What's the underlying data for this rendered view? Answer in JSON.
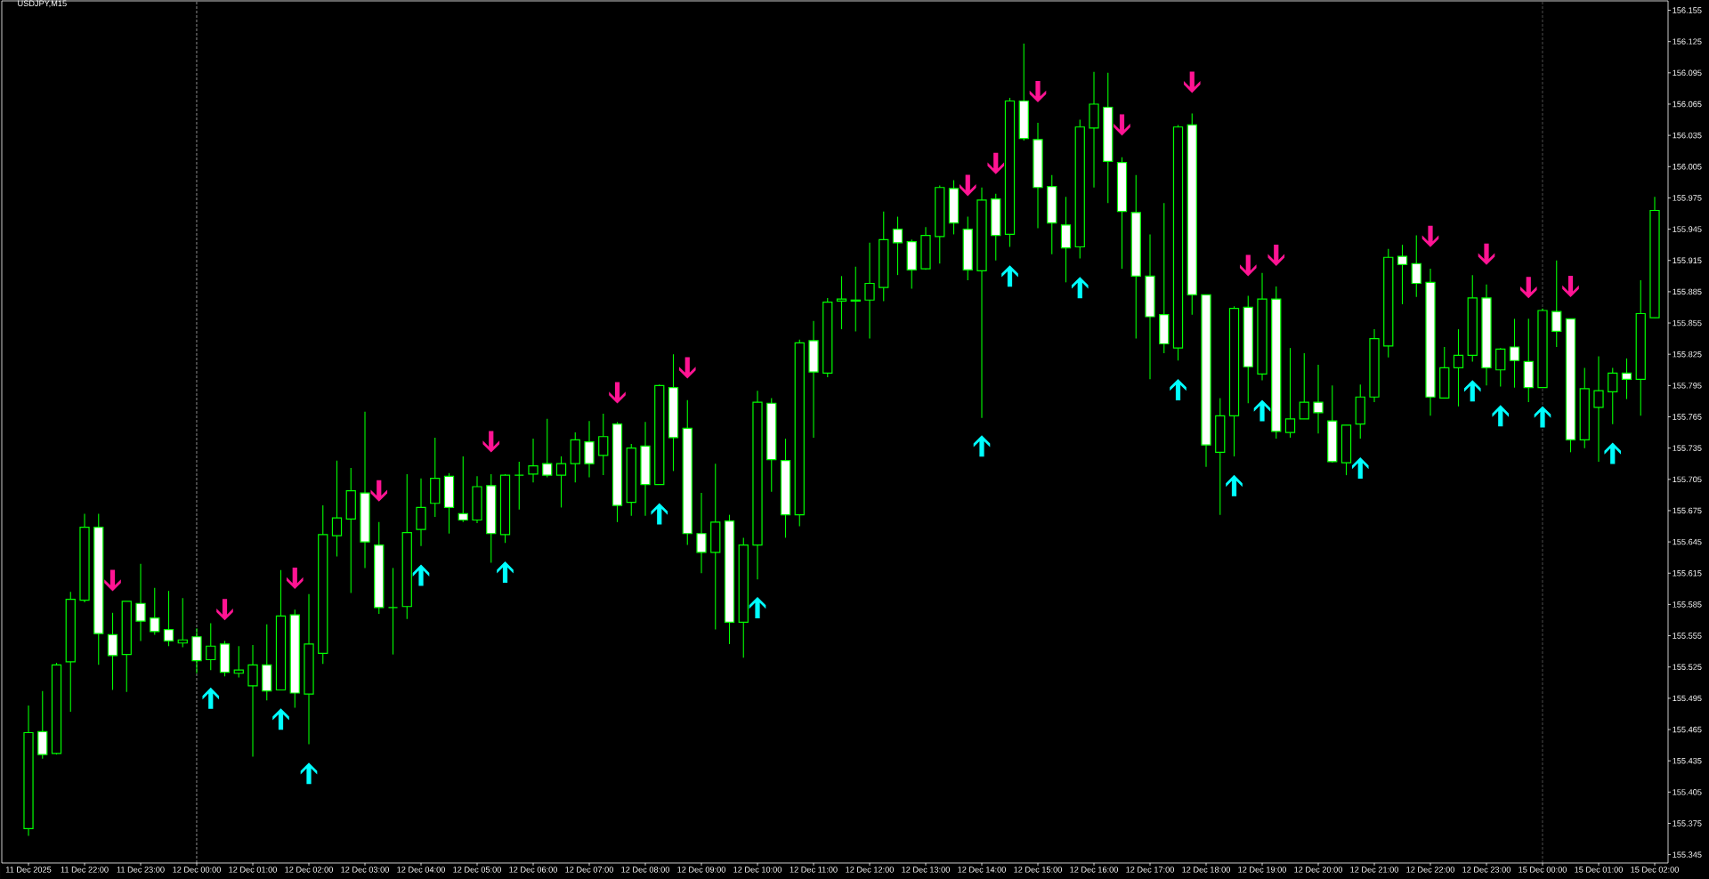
{
  "chart_data": {
    "type": "candlestick",
    "title": "USDJPY,M15",
    "categories": [
      "11 Dec 2025",
      null,
      null,
      null,
      "11 Dec 22:00",
      null,
      null,
      null,
      "11 Dec 23:00",
      null,
      null,
      null,
      "12 Dec 00:00",
      null,
      null,
      null,
      "12 Dec 01:00",
      null,
      null,
      null,
      "12 Dec 02:00",
      null,
      null,
      null,
      "12 Dec 03:00",
      null,
      null,
      null,
      "12 Dec 04:00",
      null,
      null,
      null,
      "12 Dec 05:00",
      null,
      null,
      null,
      "12 Dec 06:00",
      null,
      null,
      null,
      "12 Dec 07:00",
      null,
      null,
      null,
      "12 Dec 08:00",
      null,
      null,
      null,
      "12 Dec 09:00",
      null,
      null,
      null,
      "12 Dec 10:00",
      null,
      null,
      null,
      "12 Dec 11:00",
      null,
      null,
      null,
      "12 Dec 12:00",
      null,
      null,
      null,
      "12 Dec 13:00",
      null,
      null,
      null,
      "12 Dec 14:00",
      null,
      null,
      null,
      "12 Dec 15:00",
      null,
      null,
      null,
      "12 Dec 16:00",
      null,
      null,
      null,
      "12 Dec 17:00",
      null,
      null,
      null,
      "12 Dec 18:00",
      null,
      null,
      null,
      "12 Dec 19:00",
      null,
      null,
      null,
      "12 Dec 20:00",
      null,
      null,
      null,
      "12 Dec 21:00",
      null,
      null,
      null,
      "12 Dec 22:00",
      null,
      null,
      null,
      "12 Dec 23:00",
      null,
      null,
      null,
      "15 Dec 00:00",
      null,
      null,
      null,
      "15 Dec 01:00",
      null,
      null,
      null,
      "15 Dec 02:00"
    ],
    "color": "#00ff00",
    "ohlc": [
      [
        155.37,
        155.488,
        155.363,
        155.462
      ],
      [
        155.463,
        155.502,
        155.437,
        155.441
      ],
      [
        155.442,
        155.529,
        155.441,
        155.527
      ],
      [
        155.53,
        155.597,
        155.482,
        155.59
      ],
      [
        155.589,
        155.672,
        155.587,
        155.659
      ],
      [
        155.659,
        155.672,
        155.527,
        155.557
      ],
      [
        155.556,
        155.577,
        155.503,
        155.536
      ],
      [
        155.537,
        155.588,
        155.501,
        155.588
      ],
      [
        155.586,
        155.624,
        155.55,
        155.569
      ],
      [
        155.572,
        155.601,
        155.556,
        155.559
      ],
      [
        155.561,
        155.598,
        155.545,
        155.55
      ],
      [
        155.548,
        155.591,
        155.544,
        155.551
      ],
      [
        155.554,
        155.562,
        155.519,
        155.531
      ],
      [
        155.532,
        155.567,
        155.522,
        155.545
      ],
      [
        155.547,
        155.55,
        155.516,
        155.52
      ],
      [
        155.519,
        155.545,
        155.515,
        155.522
      ],
      [
        155.507,
        155.546,
        155.439,
        155.527
      ],
      [
        155.527,
        155.566,
        155.493,
        155.502
      ],
      [
        155.503,
        155.618,
        155.503,
        155.574
      ],
      [
        155.575,
        155.58,
        155.486,
        155.5
      ],
      [
        155.499,
        155.595,
        155.451,
        155.547
      ],
      [
        155.538,
        155.68,
        155.528,
        155.652
      ],
      [
        155.651,
        155.723,
        155.631,
        155.668
      ],
      [
        155.667,
        155.716,
        155.596,
        155.694
      ],
      [
        155.692,
        155.77,
        155.62,
        155.645
      ],
      [
        155.642,
        155.664,
        155.576,
        155.582
      ],
      [
        155.582,
        155.62,
        155.537,
        155.582
      ],
      [
        155.583,
        155.71,
        155.571,
        155.654
      ],
      [
        155.657,
        155.706,
        155.641,
        155.678
      ],
      [
        155.682,
        155.745,
        155.669,
        155.706
      ],
      [
        155.708,
        155.711,
        155.653,
        155.678
      ],
      [
        155.672,
        155.727,
        155.664,
        155.666
      ],
      [
        155.666,
        155.708,
        155.663,
        155.698
      ],
      [
        155.699,
        155.71,
        155.625,
        155.653
      ],
      [
        155.652,
        155.71,
        155.644,
        155.709
      ],
      [
        155.709,
        155.722,
        155.676,
        155.709
      ],
      [
        155.71,
        155.744,
        155.702,
        155.718
      ],
      [
        155.72,
        155.763,
        155.707,
        155.709
      ],
      [
        155.709,
        155.727,
        155.678,
        155.72
      ],
      [
        155.72,
        155.75,
        155.702,
        155.743
      ],
      [
        155.741,
        155.761,
        155.707,
        155.72
      ],
      [
        155.728,
        155.768,
        155.709,
        155.746
      ],
      [
        155.758,
        155.76,
        155.664,
        155.68
      ],
      [
        155.683,
        155.739,
        155.67,
        155.735
      ],
      [
        155.737,
        155.76,
        155.67,
        155.7
      ],
      [
        155.7,
        155.796,
        155.7,
        155.795
      ],
      [
        155.793,
        155.825,
        155.713,
        155.745
      ],
      [
        155.754,
        155.781,
        155.642,
        155.653
      ],
      [
        155.653,
        155.692,
        155.615,
        155.635
      ],
      [
        155.635,
        155.72,
        155.561,
        155.664
      ],
      [
        155.665,
        155.671,
        155.547,
        155.568
      ],
      [
        155.568,
        155.649,
        155.534,
        155.642
      ],
      [
        155.642,
        155.79,
        155.609,
        155.779
      ],
      [
        155.778,
        155.783,
        155.693,
        155.724
      ],
      [
        155.723,
        155.744,
        155.649,
        155.671
      ],
      [
        155.671,
        155.839,
        155.66,
        155.836
      ],
      [
        155.838,
        155.857,
        155.745,
        155.808
      ],
      [
        155.807,
        155.879,
        155.803,
        155.875
      ],
      [
        155.876,
        155.9,
        155.849,
        155.878
      ],
      [
        155.877,
        155.909,
        155.847,
        155.876
      ],
      [
        155.877,
        155.932,
        155.84,
        155.893
      ],
      [
        155.889,
        155.962,
        155.876,
        155.935
      ],
      [
        155.945,
        155.957,
        155.901,
        155.932
      ],
      [
        155.933,
        155.935,
        155.888,
        155.906
      ],
      [
        155.907,
        155.947,
        155.906,
        155.939
      ],
      [
        155.938,
        155.987,
        155.912,
        155.985
      ],
      [
        155.984,
        155.992,
        155.94,
        155.951
      ],
      [
        155.945,
        155.957,
        155.896,
        155.906
      ],
      [
        155.905,
        155.985,
        155.764,
        155.973
      ],
      [
        155.974,
        155.979,
        155.915,
        155.939
      ],
      [
        155.94,
        156.071,
        155.928,
        156.068
      ],
      [
        156.068,
        156.123,
        156.03,
        156.032
      ],
      [
        156.031,
        156.047,
        155.946,
        155.985
      ],
      [
        155.986,
        155.997,
        155.921,
        155.951
      ],
      [
        155.949,
        155.976,
        155.894,
        155.927
      ],
      [
        155.928,
        156.05,
        155.917,
        156.043
      ],
      [
        156.042,
        156.096,
        155.985,
        156.065
      ],
      [
        156.062,
        156.095,
        155.97,
        156.01
      ],
      [
        156.009,
        156.014,
        155.907,
        155.962
      ],
      [
        155.961,
        155.997,
        155.84,
        155.9
      ],
      [
        155.9,
        155.94,
        155.801,
        155.861
      ],
      [
        155.863,
        155.97,
        155.826,
        155.835
      ],
      [
        155.831,
        156.045,
        155.819,
        156.043
      ],
      [
        156.045,
        156.056,
        155.863,
        155.882
      ],
      [
        155.882,
        155.882,
        155.717,
        155.738
      ],
      [
        155.731,
        155.783,
        155.671,
        155.766
      ],
      [
        155.766,
        155.871,
        155.727,
        155.869
      ],
      [
        155.87,
        155.881,
        155.778,
        155.813
      ],
      [
        155.806,
        155.903,
        155.8,
        155.878
      ],
      [
        155.878,
        155.89,
        155.744,
        155.751
      ],
      [
        155.75,
        155.831,
        155.745,
        155.763
      ],
      [
        155.763,
        155.826,
        155.763,
        155.779
      ],
      [
        155.779,
        155.815,
        155.749,
        155.769
      ],
      [
        155.761,
        155.795,
        155.721,
        155.722
      ],
      [
        155.721,
        155.757,
        155.709,
        155.757
      ],
      [
        155.758,
        155.796,
        155.744,
        155.784
      ],
      [
        155.784,
        155.849,
        155.779,
        155.84
      ],
      [
        155.833,
        155.926,
        155.822,
        155.918
      ],
      [
        155.919,
        155.93,
        155.873,
        155.911
      ],
      [
        155.912,
        155.939,
        155.88,
        155.893
      ],
      [
        155.894,
        155.907,
        155.766,
        155.784
      ],
      [
        155.783,
        155.832,
        155.783,
        155.812
      ],
      [
        155.812,
        155.849,
        155.775,
        155.824
      ],
      [
        155.824,
        155.901,
        155.818,
        155.879
      ],
      [
        155.879,
        155.892,
        155.795,
        155.812
      ],
      [
        155.81,
        155.831,
        155.794,
        155.83
      ],
      [
        155.832,
        155.859,
        155.793,
        155.819
      ],
      [
        155.818,
        155.859,
        155.779,
        155.793
      ],
      [
        155.793,
        155.869,
        155.793,
        155.867
      ],
      [
        155.866,
        155.915,
        155.832,
        155.847
      ],
      [
        155.859,
        155.859,
        155.731,
        155.743
      ],
      [
        155.743,
        155.812,
        155.735,
        155.792
      ],
      [
        155.774,
        155.823,
        155.722,
        155.79
      ],
      [
        155.789,
        155.812,
        155.758,
        155.807
      ],
      [
        155.807,
        155.821,
        155.782,
        155.801
      ],
      [
        155.801,
        155.896,
        155.766,
        155.864
      ],
      [
        155.86,
        155.976,
        155.86,
        155.963
      ]
    ],
    "series": [
      {
        "type": "scatter",
        "color": "#ff1493",
        "marker": "triangle",
        "values": [
          null,
          null,
          null,
          null,
          null,
          null,
          155.608,
          null,
          null,
          null,
          null,
          null,
          null,
          null,
          155.58,
          null,
          null,
          null,
          null,
          155.61,
          null,
          null,
          null,
          null,
          null,
          155.694,
          null,
          null,
          null,
          null,
          null,
          null,
          null,
          155.741,
          null,
          null,
          null,
          null,
          null,
          null,
          null,
          null,
          155.788,
          null,
          null,
          null,
          null,
          155.812,
          null,
          null,
          null,
          null,
          null,
          null,
          null,
          null,
          null,
          null,
          null,
          null,
          null,
          null,
          null,
          null,
          null,
          null,
          null,
          155.987,
          null,
          156.008,
          null,
          null,
          156.077,
          null,
          null,
          null,
          null,
          null,
          156.045,
          null,
          null,
          null,
          null,
          156.086,
          null,
          null,
          null,
          155.91,
          null,
          155.92,
          null,
          null,
          null,
          null,
          null,
          null,
          null,
          null,
          null,
          null,
          155.938,
          null,
          null,
          null,
          155.921,
          null,
          null,
          155.889,
          null,
          null,
          155.89,
          null,
          null,
          null,
          null,
          null,
          null
        ]
      },
      {
        "type": "scatter",
        "color": "#00ffff",
        "marker": "triangle",
        "values": [
          null,
          null,
          null,
          null,
          null,
          null,
          null,
          null,
          null,
          null,
          null,
          null,
          null,
          155.495,
          null,
          null,
          null,
          null,
          155.475,
          null,
          155.423,
          null,
          null,
          null,
          null,
          null,
          null,
          null,
          155.613,
          null,
          null,
          null,
          null,
          null,
          155.616,
          null,
          null,
          null,
          null,
          null,
          null,
          null,
          null,
          null,
          null,
          155.672,
          null,
          null,
          null,
          null,
          null,
          null,
          155.582,
          null,
          null,
          null,
          null,
          null,
          null,
          null,
          null,
          null,
          null,
          null,
          null,
          null,
          null,
          null,
          155.737,
          null,
          155.9,
          null,
          null,
          null,
          null,
          155.889,
          null,
          null,
          null,
          null,
          null,
          null,
          155.791,
          null,
          null,
          null,
          155.699,
          null,
          155.771,
          null,
          null,
          null,
          null,
          null,
          null,
          155.716,
          null,
          null,
          null,
          null,
          null,
          null,
          null,
          155.79,
          null,
          155.766,
          null,
          null,
          155.765,
          null,
          null,
          null,
          null,
          155.73,
          null,
          null,
          null
        ]
      }
    ],
    "ylim": [
      155.337,
      156.164
    ],
    "yticks": [
      155.345,
      155.375,
      155.405,
      155.435,
      155.465,
      155.495,
      155.525,
      155.555,
      155.585,
      155.615,
      155.645,
      155.675,
      155.705,
      155.735,
      155.765,
      155.795,
      155.825,
      155.855,
      155.885,
      155.915,
      155.945,
      155.975,
      156.005,
      156.035,
      156.065,
      156.095,
      156.125,
      156.155
    ],
    "ref_lines": [
      {
        "axis": "x",
        "value": "12 Dec 00:00",
        "color": "#ffffff",
        "line_style": "dashed"
      },
      {
        "axis": "x",
        "value": "15 Dec 00:00",
        "color": "#ffffff",
        "line_style": "dashed"
      }
    ]
  }
}
